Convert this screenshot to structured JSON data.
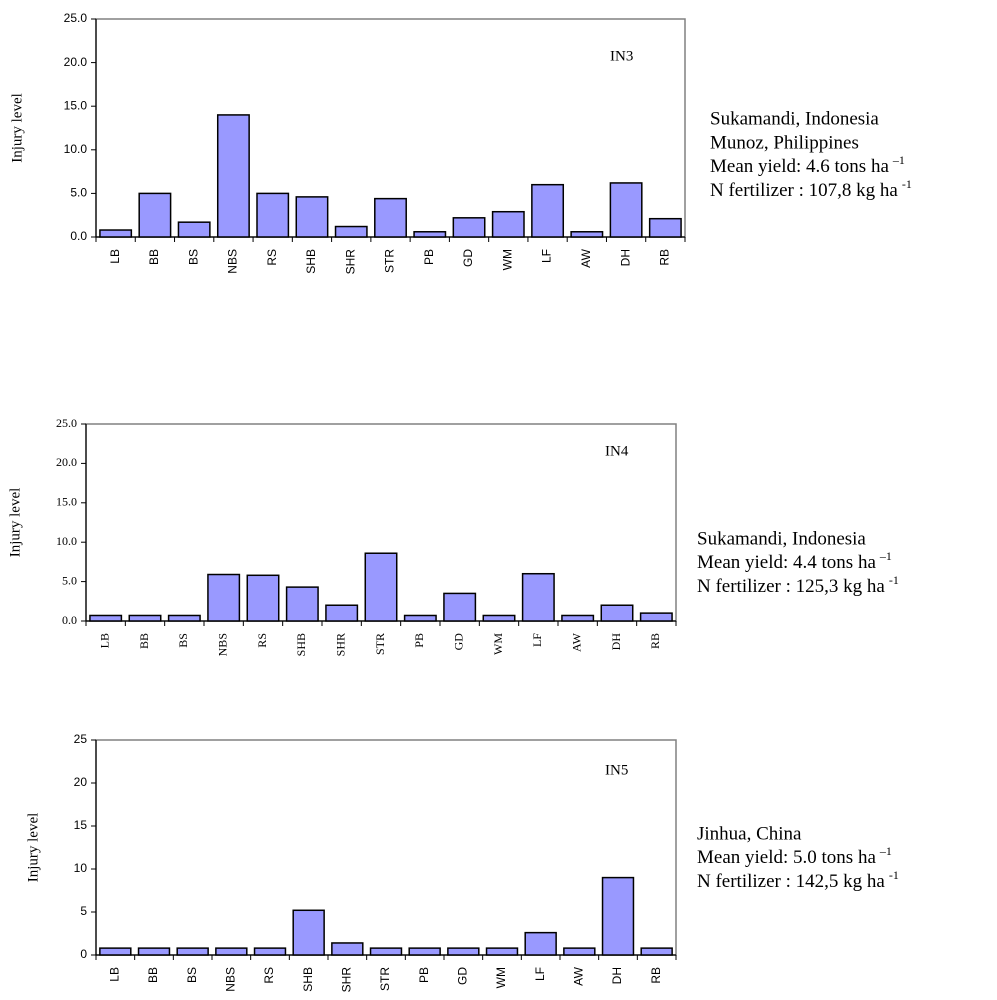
{
  "chart_data": [
    {
      "type": "bar",
      "label": "IN3",
      "y_label": "Injury level",
      "categories": [
        "LB",
        "BB",
        "BS",
        "NBS",
        "RS",
        "SHB",
        "SHR",
        "STR",
        "PB",
        "GD",
        "WM",
        "LF",
        "AW",
        "DH",
        "RB"
      ],
      "values": [
        0.8,
        5.0,
        1.7,
        14.0,
        5.0,
        4.6,
        1.2,
        4.4,
        0.6,
        2.2,
        2.9,
        6.0,
        0.6,
        6.2,
        2.1
      ],
      "color": "#9999ff",
      "ylim": [
        0,
        25
      ],
      "yticks": [
        {
          "value": 0,
          "label": "0.0"
        },
        {
          "value": 5,
          "label": "5.0"
        },
        {
          "value": 10,
          "label": "10.0"
        },
        {
          "value": 15,
          "label": "15.0"
        },
        {
          "value": 20,
          "label": "20.0"
        },
        {
          "value": 25,
          "label": "25.0"
        }
      ],
      "notes": [
        "Sukamandi, Indonesia",
        "Munoz, Philippines",
        {
          "text": "Mean yield: 4.6 tons ha",
          "sup": "–1"
        },
        {
          "text": "N fertilizer : 107,8 kg ha",
          "sup": "-1"
        }
      ]
    },
    {
      "type": "bar",
      "label": "IN4",
      "y_label": "Injury level",
      "categories": [
        "LB",
        "BB",
        "BS",
        "NBS",
        "RS",
        "SHB",
        "SHR",
        "STR",
        "PB",
        "GD",
        "WM",
        "LF",
        "AW",
        "DH",
        "RB"
      ],
      "values": [
        0.7,
        0.7,
        0.7,
        5.9,
        5.8,
        4.3,
        2.0,
        8.6,
        0.7,
        3.5,
        0.7,
        6.0,
        0.7,
        2.0,
        1.0
      ],
      "color": "#9999ff",
      "ylim": [
        0,
        25
      ],
      "yticks": [
        {
          "value": 0,
          "label": "0.0"
        },
        {
          "value": 5,
          "label": "5.0"
        },
        {
          "value": 10,
          "label": "10.0"
        },
        {
          "value": 15,
          "label": "15.0"
        },
        {
          "value": 20,
          "label": "20.0"
        },
        {
          "value": 25,
          "label": "25.0"
        }
      ],
      "notes": [
        "Sukamandi, Indonesia",
        {
          "text": "Mean yield: 4.4 tons ha",
          "sup": "–1"
        },
        {
          "text": "N fertilizer : 125,3 kg ha",
          "sup": "-1"
        }
      ]
    },
    {
      "type": "bar",
      "label": "IN5",
      "y_label": "Injury level",
      "categories": [
        "LB",
        "BB",
        "BS",
        "NBS",
        "RS",
        "SHB",
        "SHR",
        "STR",
        "PB",
        "GD",
        "WM",
        "LF",
        "AW",
        "DH",
        "RB"
      ],
      "values": [
        0.8,
        0.8,
        0.8,
        0.8,
        0.8,
        5.2,
        1.4,
        0.8,
        0.8,
        0.8,
        0.8,
        2.6,
        0.8,
        9.0,
        0.8
      ],
      "color": "#9999ff",
      "ylim": [
        0,
        25
      ],
      "yticks": [
        0,
        5,
        10,
        15,
        20,
        25
      ],
      "notes": [
        "Jinhua, China",
        {
          "text": "Mean yield: 5.0 tons ha",
          "sup": "–1"
        },
        {
          "text": "N fertilizer : 142,5 kg ha",
          "sup": "-1"
        }
      ]
    }
  ]
}
